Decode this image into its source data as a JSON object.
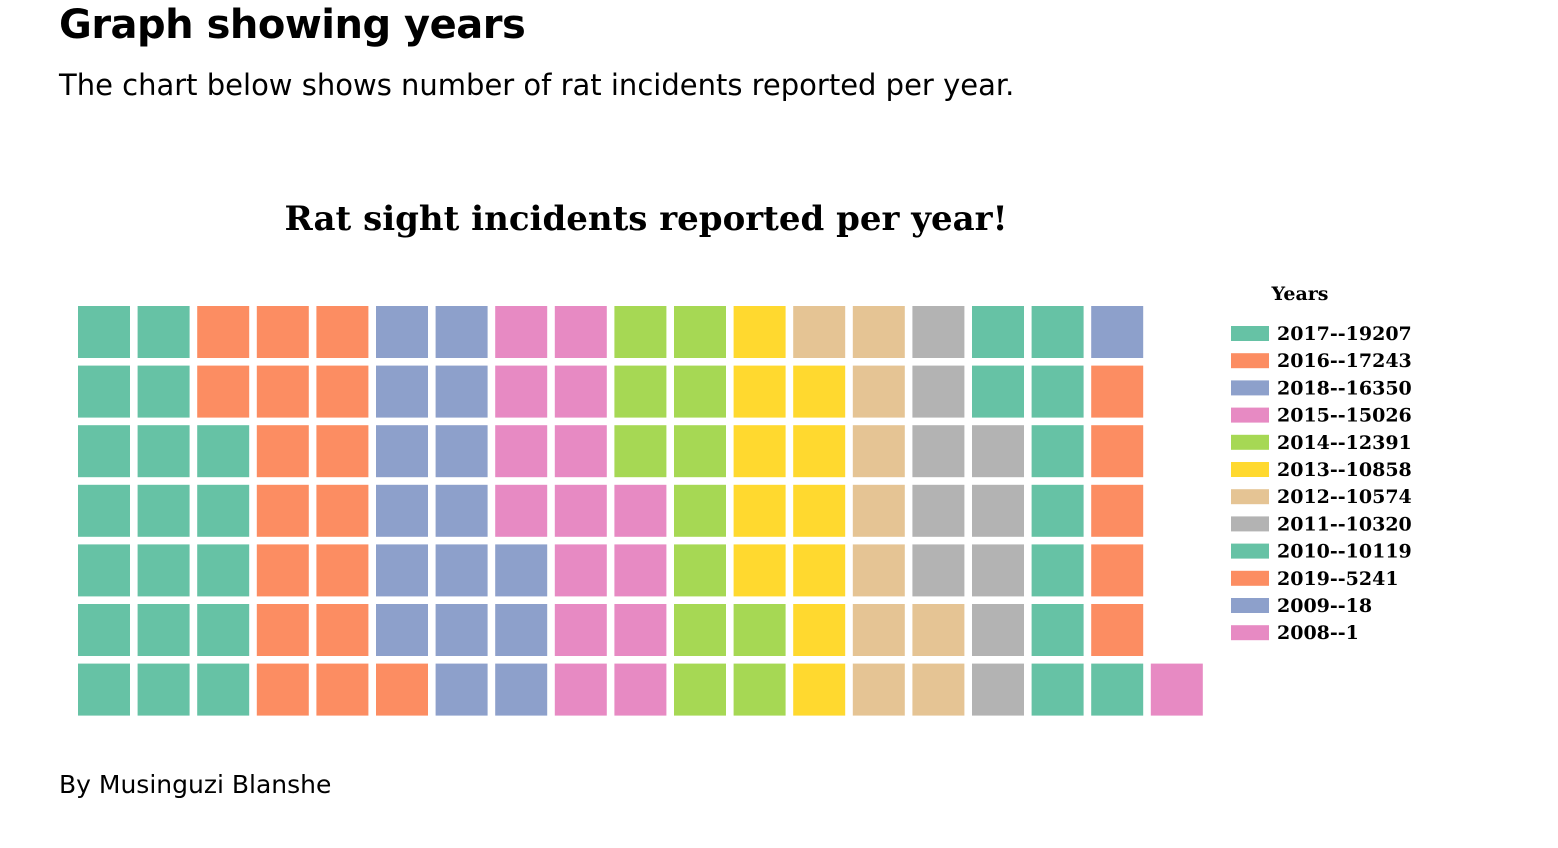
{
  "page": {
    "title": "Graph showing years",
    "subtitle": "The chart below shows number of rat incidents reported per year.",
    "author": "By Musinguzi Blanshe"
  },
  "chart_data": {
    "type": "waffle",
    "title": "Rat sight incidents reported per year!",
    "legend_title": "Years",
    "legend_position": "right",
    "rows": 7,
    "columns": 19,
    "fill_order": "column-major, bottom-to-top per column",
    "series": [
      {
        "label": "2017--19207",
        "year": "2017",
        "value": 19207,
        "color": "#66c2a5"
      },
      {
        "label": "2016--17243",
        "year": "2016",
        "value": 17243,
        "color": "#fc8d62"
      },
      {
        "label": "2018--16350",
        "year": "2018",
        "value": 16350,
        "color": "#8da0cb"
      },
      {
        "label": "2015--15026",
        "year": "2015",
        "value": 15026,
        "color": "#e78ac3"
      },
      {
        "label": "2014--12391",
        "year": "2014",
        "value": 12391,
        "color": "#a6d854"
      },
      {
        "label": "2013--10858",
        "year": "2013",
        "value": 10858,
        "color": "#ffd92f"
      },
      {
        "label": "2012--10574",
        "year": "2012",
        "value": 10574,
        "color": "#e5c494"
      },
      {
        "label": "2011--10320",
        "year": "2011",
        "value": 10320,
        "color": "#b3b3b3"
      },
      {
        "label": "2010--10119",
        "year": "2010",
        "value": 10119,
        "color": "#66c2a5"
      },
      {
        "label": "2019--5241",
        "year": "2019",
        "value": 5241,
        "color": "#fc8d62"
      },
      {
        "label": "2009--18",
        "year": "2009",
        "value": 18,
        "color": "#8da0cb"
      },
      {
        "label": "2008--1",
        "year": "2008",
        "value": 1,
        "color": "#e78ac3"
      }
    ],
    "squares_per_series": [
      19,
      17,
      16,
      15,
      12,
      11,
      10,
      10,
      10,
      5,
      1,
      1
    ]
  }
}
